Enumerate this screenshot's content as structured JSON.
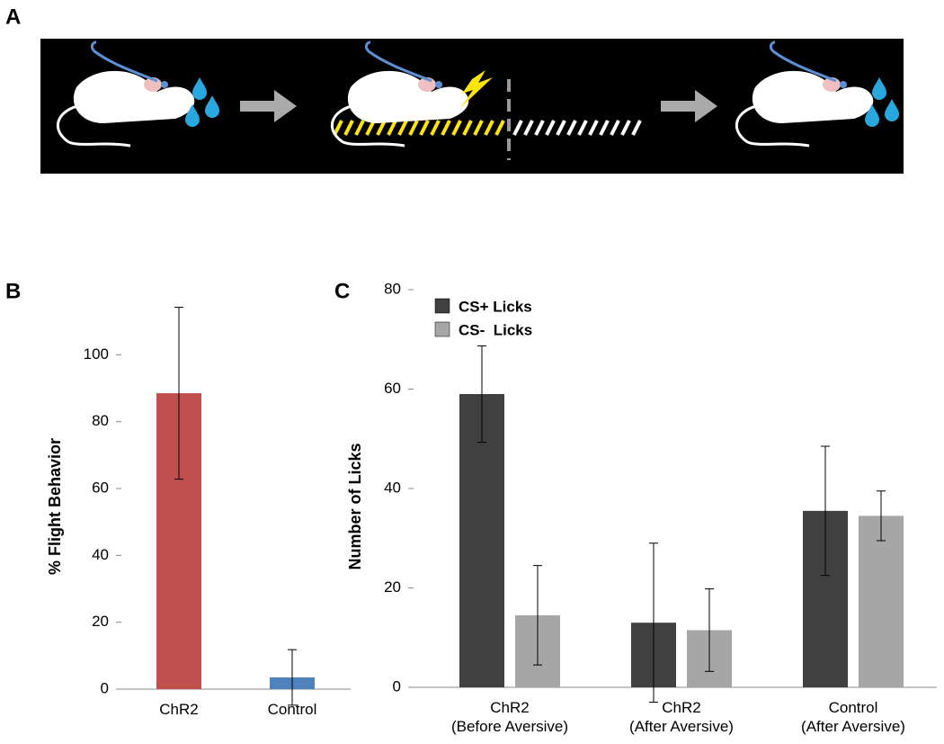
{
  "panel_labels": [
    "A",
    "B",
    "C"
  ],
  "chart_data": [
    {
      "type": "bar",
      "ylabel": "% Flight Behavior",
      "categories": [
        "ChR2",
        "Control"
      ],
      "values": [
        88.5,
        3.5
      ],
      "errors": [
        25.7,
        8.3
      ],
      "colors": [
        "#c0504d",
        "#4f81bd"
      ],
      "ylim": [
        0,
        120
      ],
      "yticks": [
        0,
        20,
        40,
        60,
        80,
        100
      ]
    },
    {
      "type": "grouped_bar",
      "ylabel": "Number of Licks",
      "categories": [
        "ChR2\n(Before Aversive)",
        "ChR2\n(After Aversive)",
        "Control\n(After Aversive)"
      ],
      "series": [
        {
          "name": "CS+ Licks",
          "color": "#404040",
          "values": [
            59,
            13,
            35.5
          ],
          "errors": [
            9.7,
            16,
            13
          ]
        },
        {
          "name": "CS-  Licks",
          "color": "#a6a6a6",
          "values": [
            14.5,
            11.5,
            34.5
          ],
          "errors": [
            10,
            8.3,
            5
          ]
        }
      ],
      "ylim": [
        0,
        80
      ],
      "yticks": [
        0,
        20,
        40,
        60,
        80
      ],
      "legend": "upper left"
    }
  ]
}
